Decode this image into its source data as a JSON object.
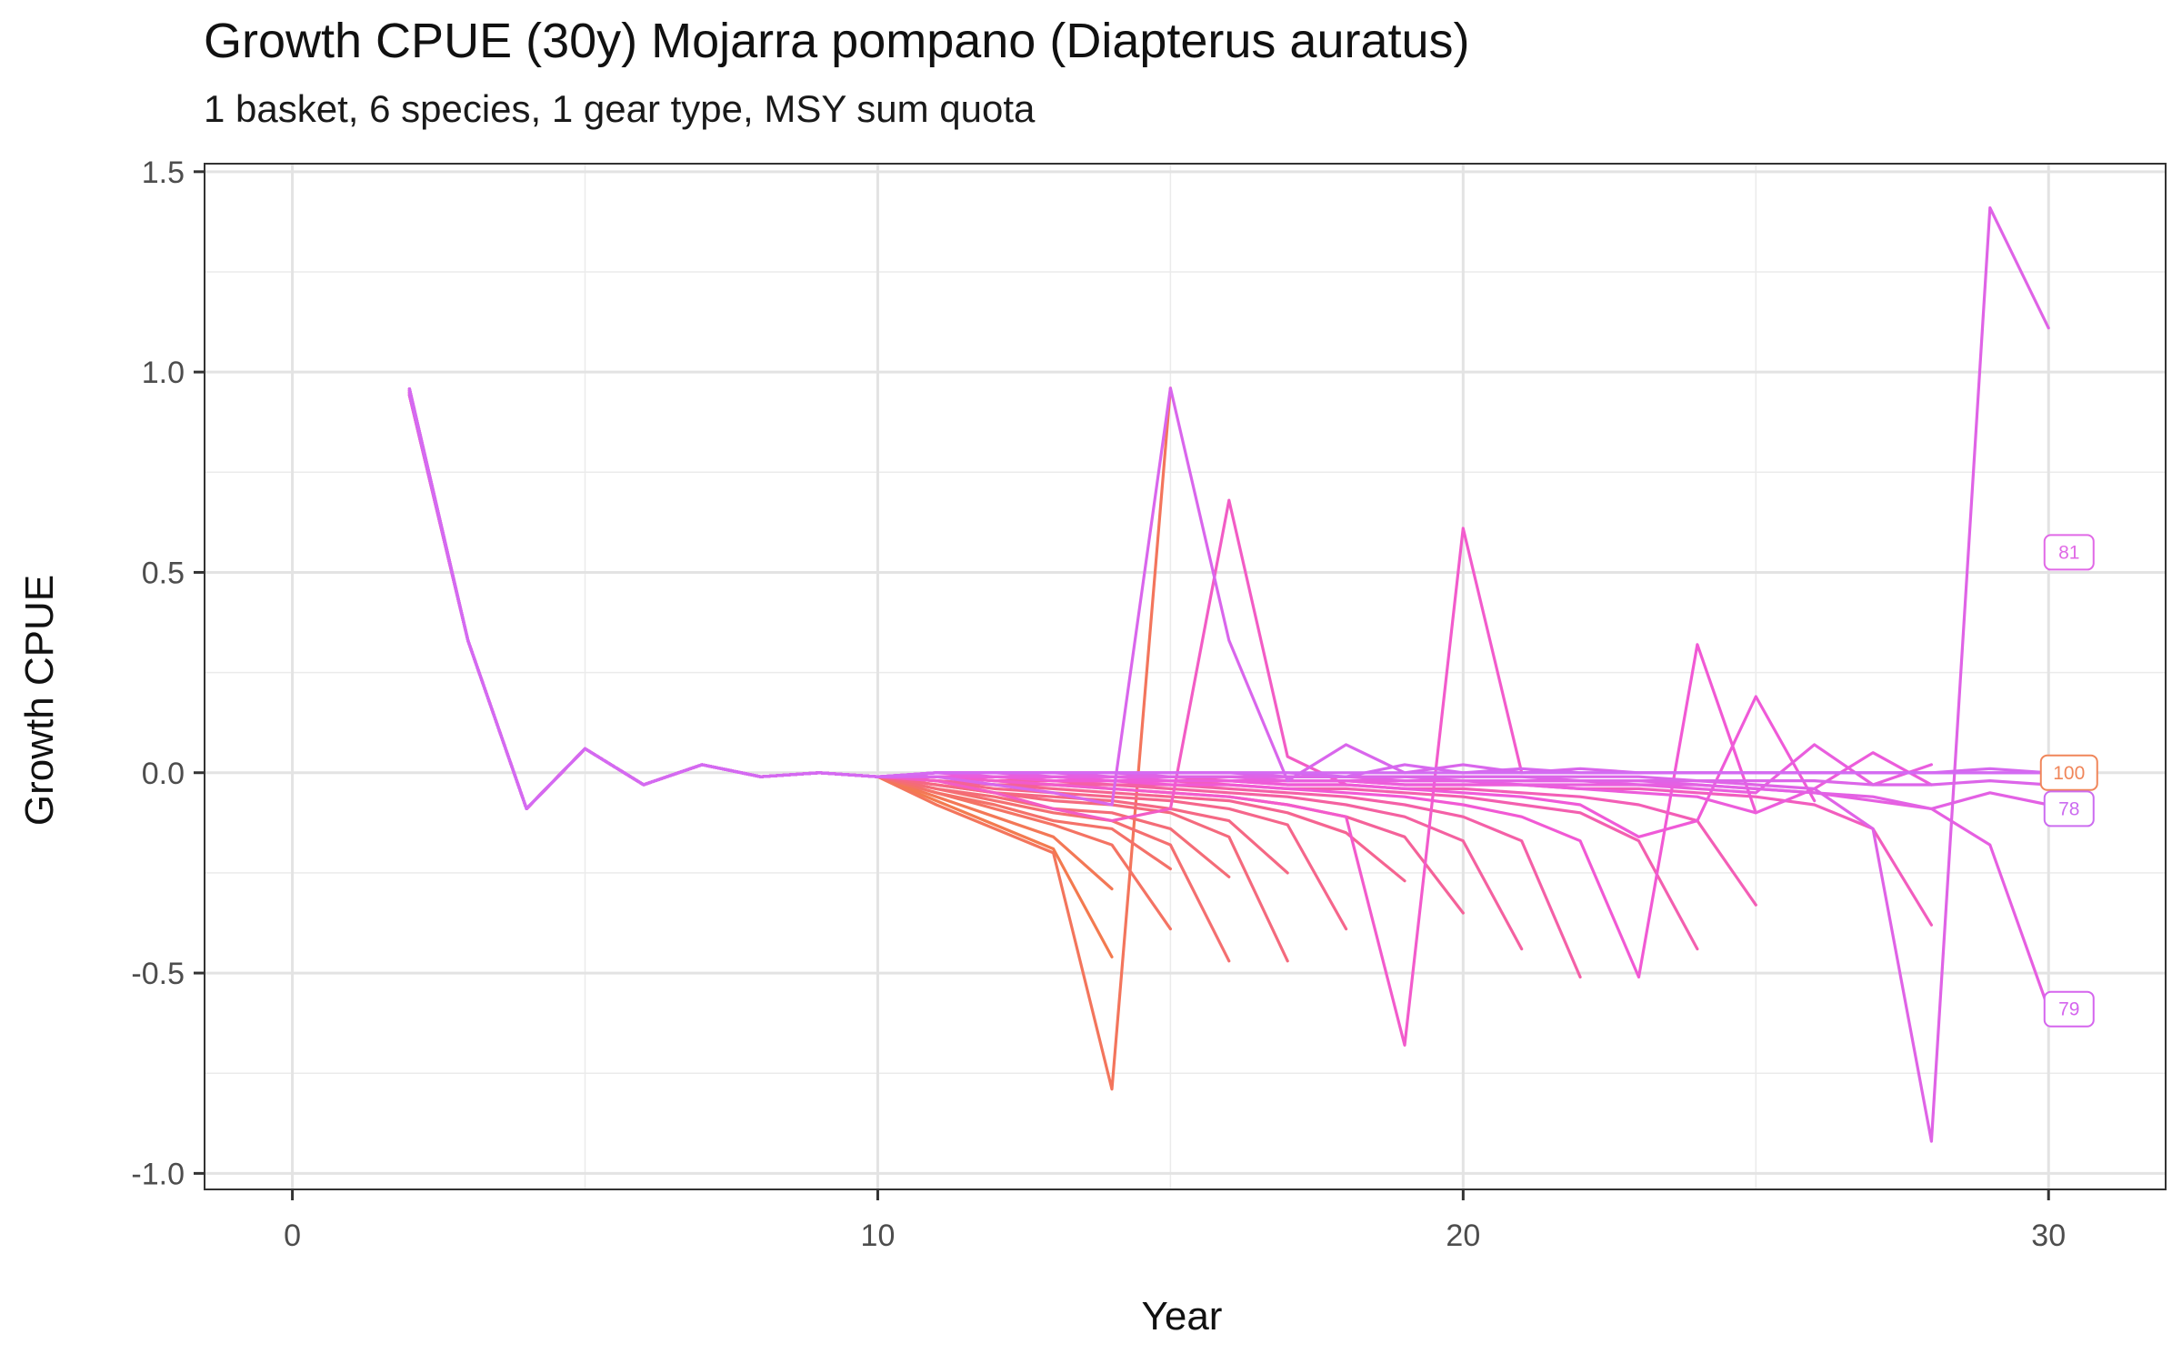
{
  "chart_data": {
    "type": "line",
    "title": "Growth CPUE (30y) Mojarra pompano (Diapterus auratus)",
    "subtitle": "1 basket, 6 species, 1 gear type, MSY sum quota",
    "xlabel": "Year",
    "ylabel": "Growth CPUE",
    "xlim": [
      -1.5,
      32
    ],
    "ylim": [
      -1.04,
      1.52
    ],
    "xticks": [
      0,
      10,
      20,
      30
    ],
    "xtick_labels": [
      "0",
      "10",
      "20",
      "30"
    ],
    "yticks": [
      -1.0,
      -0.5,
      0.0,
      0.5,
      1.0,
      1.5
    ],
    "ytick_labels": [
      "-1.0",
      "-0.5",
      "0.0",
      "0.5",
      "1.0",
      "1.5"
    ],
    "grid": true,
    "legend": "none",
    "color_gradient": [
      "#f37a4f",
      "#f5648f",
      "#f159d6",
      "#d36af2"
    ],
    "common_prefix": {
      "x": [
        2,
        3,
        4,
        5,
        6,
        7,
        8,
        9,
        10
      ],
      "y": [
        0.95,
        0.33,
        -0.09,
        0.06,
        -0.03,
        0.02,
        -0.01,
        0.0,
        -0.01
      ]
    },
    "series": [
      {
        "x": [
          11,
          12,
          13,
          14
        ],
        "y": [
          -0.07,
          -0.13,
          -0.19,
          -0.46
        ]
      },
      {
        "x": [
          11,
          12,
          13,
          14
        ],
        "y": [
          -0.06,
          -0.11,
          -0.16,
          -0.29
        ]
      },
      {
        "x": [
          11,
          12,
          13,
          14,
          15
        ],
        "y": [
          -0.08,
          -0.14,
          -0.2,
          -0.79,
          0.96
        ]
      },
      {
        "x": [
          11,
          12,
          13,
          14,
          15
        ],
        "y": [
          -0.05,
          -0.09,
          -0.13,
          -0.18,
          -0.39
        ]
      },
      {
        "x": [
          11,
          12,
          13,
          14,
          15
        ],
        "y": [
          -0.05,
          -0.08,
          -0.12,
          -0.14,
          -0.24
        ]
      },
      {
        "x": [
          11,
          12,
          13,
          14,
          15,
          16
        ],
        "y": [
          -0.04,
          -0.07,
          -0.1,
          -0.12,
          -0.18,
          -0.47
        ]
      },
      {
        "x": [
          11,
          12,
          13,
          14,
          15,
          16
        ],
        "y": [
          -0.04,
          -0.06,
          -0.09,
          -0.1,
          -0.14,
          -0.26
        ]
      },
      {
        "x": [
          11,
          12,
          13,
          14,
          15,
          16,
          17
        ],
        "y": [
          -0.03,
          -0.05,
          -0.07,
          -0.08,
          -0.1,
          -0.16,
          -0.47
        ]
      },
      {
        "x": [
          11,
          12,
          13,
          14,
          15,
          16,
          17
        ],
        "y": [
          -0.03,
          -0.05,
          -0.06,
          -0.07,
          -0.09,
          -0.12,
          -0.25
        ]
      },
      {
        "x": [
          11,
          12,
          13,
          14,
          15,
          16,
          17,
          18
        ],
        "y": [
          -0.02,
          -0.04,
          -0.05,
          -0.06,
          -0.07,
          -0.09,
          -0.13,
          -0.39
        ]
      },
      {
        "x": [
          11,
          12,
          13,
          14,
          15,
          16,
          17,
          18,
          19
        ],
        "y": [
          -0.02,
          -0.03,
          -0.04,
          -0.05,
          -0.06,
          -0.07,
          -0.1,
          -0.15,
          -0.27
        ]
      },
      {
        "x": [
          11,
          12,
          13,
          14,
          15,
          16,
          17,
          18,
          19,
          20
        ],
        "y": [
          -0.02,
          -0.03,
          -0.03,
          -0.04,
          -0.05,
          -0.06,
          -0.08,
          -0.11,
          -0.16,
          -0.35
        ]
      },
      {
        "x": [
          11,
          12,
          13,
          14,
          15,
          16,
          17,
          18,
          19,
          20,
          21
        ],
        "y": [
          -0.01,
          -0.02,
          -0.03,
          -0.03,
          -0.04,
          -0.05,
          -0.06,
          -0.08,
          -0.11,
          -0.17,
          -0.44
        ]
      },
      {
        "x": [
          11,
          12,
          13,
          14,
          15,
          16,
          17,
          18,
          19,
          20,
          21,
          22
        ],
        "y": [
          -0.01,
          -0.02,
          -0.02,
          -0.03,
          -0.03,
          -0.04,
          -0.05,
          -0.06,
          -0.08,
          -0.11,
          -0.17,
          -0.51
        ]
      },
      {
        "x": [
          11,
          12,
          13,
          14,
          15,
          16,
          17,
          18,
          19,
          20,
          21,
          22,
          23,
          24
        ],
        "y": [
          -0.01,
          -0.01,
          -0.02,
          -0.02,
          -0.02,
          -0.03,
          -0.04,
          -0.04,
          -0.05,
          -0.06,
          -0.08,
          -0.1,
          -0.17,
          -0.44
        ]
      },
      {
        "x": [
          11,
          12,
          13,
          14,
          15,
          16,
          17,
          18,
          19,
          20,
          21,
          22,
          23,
          24,
          25
        ],
        "y": [
          -0.01,
          -0.01,
          -0.01,
          -0.02,
          -0.02,
          -0.02,
          -0.03,
          -0.03,
          -0.04,
          -0.04,
          -0.05,
          -0.06,
          -0.08,
          -0.12,
          -0.33
        ]
      },
      {
        "x": [
          11,
          12,
          13,
          14,
          15,
          16,
          17,
          18,
          19,
          20,
          21,
          22,
          23,
          24,
          25,
          26,
          27,
          28
        ],
        "y": [
          -0.01,
          -0.01,
          -0.01,
          -0.01,
          -0.01,
          -0.02,
          -0.02,
          -0.02,
          -0.03,
          -0.03,
          -0.03,
          -0.04,
          -0.04,
          -0.05,
          -0.06,
          -0.08,
          -0.14,
          -0.38
        ]
      },
      {
        "x": [
          11,
          12,
          13,
          14,
          15,
          16,
          17,
          18
        ],
        "y": [
          -0.02,
          -0.05,
          -0.09,
          -0.12,
          -0.09,
          0.68,
          0.04,
          -0.03
        ]
      },
      {
        "x": [
          11,
          12,
          13,
          14,
          15,
          16,
          17,
          18,
          19,
          20,
          21
        ],
        "y": [
          -0.01,
          -0.02,
          -0.03,
          -0.04,
          -0.05,
          -0.06,
          -0.08,
          -0.11,
          -0.68,
          0.61,
          0.0
        ]
      },
      {
        "x": [
          11,
          12,
          13,
          14,
          15,
          16,
          17,
          18,
          19,
          20,
          21,
          22,
          23,
          24,
          25
        ],
        "y": [
          -0.01,
          -0.01,
          -0.02,
          -0.02,
          -0.03,
          -0.03,
          -0.04,
          -0.05,
          -0.06,
          -0.08,
          -0.11,
          -0.17,
          -0.51,
          0.32,
          -0.1
        ]
      },
      {
        "x": [
          11,
          12,
          13,
          14,
          15,
          16,
          17,
          18,
          19,
          20,
          21,
          22,
          23,
          24,
          25,
          26
        ],
        "y": [
          -0.01,
          -0.01,
          -0.01,
          -0.02,
          -0.02,
          -0.02,
          -0.03,
          -0.03,
          -0.04,
          -0.05,
          -0.06,
          -0.08,
          -0.16,
          -0.12,
          0.19,
          -0.07
        ]
      },
      {
        "x": [
          11,
          12,
          13,
          14,
          15,
          16,
          17,
          18,
          19,
          20,
          21,
          22,
          23,
          24,
          25,
          26,
          27,
          28
        ],
        "y": [
          -0.01,
          -0.01,
          -0.01,
          -0.01,
          -0.02,
          -0.02,
          -0.02,
          -0.02,
          -0.03,
          -0.03,
          -0.03,
          -0.04,
          -0.05,
          -0.06,
          -0.1,
          -0.04,
          0.05,
          -0.03
        ]
      },
      {
        "x": [
          11,
          12,
          13,
          14,
          15,
          16,
          17,
          18,
          19,
          20,
          21,
          22,
          23,
          24,
          25,
          26,
          27,
          28
        ],
        "y": [
          0.0,
          -0.01,
          -0.01,
          -0.01,
          -0.01,
          -0.01,
          -0.02,
          -0.02,
          -0.02,
          -0.02,
          -0.03,
          -0.03,
          -0.03,
          -0.04,
          -0.05,
          0.07,
          -0.03,
          0.02
        ]
      },
      {
        "x": [
          11,
          12,
          13,
          14,
          15,
          16,
          17,
          18,
          19,
          20,
          21,
          22,
          23,
          24,
          25,
          26,
          27,
          28,
          29,
          30
        ],
        "y": [
          0.0,
          0.0,
          -0.01,
          -0.01,
          -0.01,
          -0.01,
          -0.01,
          -0.01,
          -0.02,
          -0.02,
          -0.02,
          -0.02,
          -0.03,
          -0.03,
          -0.04,
          -0.05,
          -0.07,
          -0.09,
          -0.18,
          -0.59
        ]
      },
      {
        "x": [
          11,
          12,
          13,
          14,
          15,
          16,
          17,
          18,
          19,
          20,
          21,
          22,
          23,
          24,
          25,
          26,
          27,
          28,
          29,
          30
        ],
        "y": [
          0.0,
          0.0,
          0.0,
          -0.01,
          -0.01,
          -0.01,
          -0.01,
          -0.01,
          -0.01,
          -0.02,
          -0.02,
          -0.02,
          -0.02,
          -0.03,
          -0.04,
          -0.05,
          -0.06,
          -0.09,
          -0.05,
          -0.08
        ]
      },
      {
        "x": [
          11,
          12,
          13,
          14,
          15,
          16,
          17,
          18,
          19,
          20,
          21,
          22,
          23,
          24,
          25,
          26,
          27,
          28,
          29,
          30
        ],
        "y": [
          0.0,
          0.0,
          0.0,
          0.0,
          -0.01,
          -0.01,
          -0.01,
          -0.01,
          -0.01,
          -0.01,
          -0.01,
          -0.02,
          -0.02,
          -0.02,
          -0.03,
          -0.04,
          -0.14,
          -0.92,
          1.41,
          1.11
        ]
      },
      {
        "x": [
          11,
          12,
          13,
          14,
          15,
          16,
          17,
          18,
          19,
          20,
          21,
          22,
          23,
          24,
          25,
          26,
          27,
          28,
          29,
          30
        ],
        "y": [
          0.0,
          0.0,
          0.0,
          0.0,
          0.0,
          0.0,
          -0.01,
          -0.01,
          -0.01,
          -0.01,
          -0.01,
          -0.01,
          -0.01,
          -0.02,
          -0.02,
          -0.02,
          -0.03,
          -0.03,
          -0.02,
          -0.03
        ]
      },
      {
        "x": [
          11,
          12,
          13,
          14,
          15,
          16,
          17,
          18,
          19,
          20,
          21,
          22,
          23,
          24,
          25,
          26,
          27,
          28,
          29,
          30
        ],
        "y": [
          -0.01,
          -0.03,
          -0.05,
          -0.08,
          0.96,
          0.33,
          -0.02,
          0.07,
          0.0,
          0.02,
          0.0,
          0.01,
          0.0,
          0.0,
          0.0,
          0.0,
          0.0,
          0.0,
          0.0,
          0.0
        ]
      },
      {
        "x": [
          11,
          12,
          13,
          14,
          15,
          16,
          17,
          18,
          19,
          20,
          21,
          22,
          23,
          24,
          25,
          26,
          27,
          28,
          29,
          30
        ],
        "y": [
          0.0,
          0.0,
          0.0,
          0.0,
          0.0,
          0.0,
          0.0,
          -0.01,
          0.02,
          0.0,
          0.01,
          0.0,
          0.0,
          0.0,
          0.0,
          0.0,
          0.0,
          0.0,
          0.01,
          0.0
        ]
      },
      {
        "x": [
          11,
          12,
          13,
          14,
          15,
          16,
          17,
          18,
          19,
          20,
          21,
          22,
          23,
          24,
          25,
          26,
          27,
          28,
          29,
          30
        ],
        "y": [
          0.0,
          0.0,
          0.0,
          0.0,
          0.0,
          0.0,
          0.0,
          0.0,
          0.0,
          0.0,
          0.0,
          0.0,
          0.0,
          0.0,
          0.0,
          0.0,
          0.0,
          0.0,
          0.0,
          0.0
        ]
      }
    ],
    "end_labels": [
      {
        "text": "81",
        "x": 30.35,
        "y": 0.55,
        "color": "#e069e6"
      },
      {
        "text": "100",
        "x": 30.35,
        "y": 0.0,
        "color": "#f0865a"
      },
      {
        "text": "78",
        "x": 30.35,
        "y": -0.09,
        "color": "#cc6cf0"
      },
      {
        "text": "79",
        "x": 30.35,
        "y": -0.59,
        "color": "#d565ee"
      }
    ]
  }
}
